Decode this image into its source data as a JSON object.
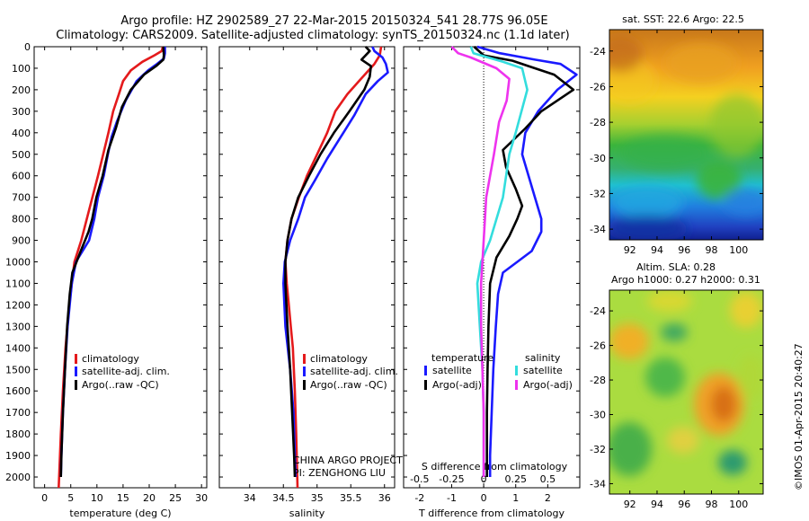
{
  "header": {
    "title_line1": "Argo profile: HZ 2902589_27 22-Mar-2015 20150324_541 28.77S 96.05E",
    "title_line2": "Climatology: CARS2009. Satellite-adjusted climatology: synTS_20150324.nc (1.1d later)"
  },
  "colors": {
    "climatology": "#e41a1c",
    "satellite": "#1a1aff",
    "argo": "#000000",
    "sat_salinity": "#33dddd",
    "argo_salinity": "#ee33ee"
  },
  "credit": {
    "line1": "CHINA ARGO PROJECT",
    "line2": "PI: ZENGHONG LIU"
  },
  "watermark": "©IMOS 01-Apr-2015 20:40:27",
  "depth_ticks": [
    0,
    100,
    200,
    300,
    400,
    500,
    600,
    700,
    800,
    900,
    1000,
    1100,
    1200,
    1300,
    1400,
    1500,
    1600,
    1700,
    1800,
    1900,
    2000
  ],
  "maps": {
    "sst_title": "sat. SST: 22.6  Argo: 22.5",
    "sla_title1": "Altim. SLA: 0.28",
    "sla_title2": "Argo h1000: 0.27 h2000: 0.31",
    "lat_ticks": [
      -24,
      -26,
      -28,
      -30,
      -32,
      -34
    ],
    "lon_ticks": [
      92,
      94,
      96,
      98,
      100
    ],
    "lon_range": [
      90.5,
      101.8
    ],
    "lat_range": [
      -34.6,
      -22.8
    ]
  },
  "chart_data": [
    {
      "type": "line",
      "id": "temperature",
      "xlabel": "temperature (deg C)",
      "ylabel": "",
      "xlim": [
        -2,
        31
      ],
      "ylim": [
        2050,
        0
      ],
      "x_ticks": [
        0,
        5,
        10,
        15,
        20,
        25,
        30
      ],
      "legend": [
        "climatology",
        "satellite-adj. clim.",
        "Argo(..raw -QC)"
      ],
      "legend_position": "lower-center",
      "series": [
        {
          "name": "climatology",
          "color": "#e41a1c",
          "points": [
            [
              22.6,
              0
            ],
            [
              22.4,
              20
            ],
            [
              21,
              40
            ],
            [
              18.7,
              70
            ],
            [
              16.5,
              110
            ],
            [
              15,
              160
            ],
            [
              14.2,
              220
            ],
            [
              13.1,
              300
            ],
            [
              12.2,
              400
            ],
            [
              11.2,
              500
            ],
            [
              10.2,
              600
            ],
            [
              8.6,
              750
            ],
            [
              7,
              900
            ],
            [
              5.7,
              1000
            ],
            [
              4.7,
              1200
            ],
            [
              4,
              1400
            ],
            [
              3.5,
              1600
            ],
            [
              3.1,
              1800
            ],
            [
              2.7,
              2050
            ]
          ]
        },
        {
          "name": "satellite-adj. clim.",
          "color": "#1a1aff",
          "points": [
            [
              23,
              0
            ],
            [
              23,
              30
            ],
            [
              22.8,
              55
            ],
            [
              21.5,
              80
            ],
            [
              19.8,
              110
            ],
            [
              17.6,
              160
            ],
            [
              15.5,
              250
            ],
            [
              13.8,
              350
            ],
            [
              12.8,
              420
            ],
            [
              12.1,
              500
            ],
            [
              11.3,
              600
            ],
            [
              10.2,
              700
            ],
            [
              9.5,
              800
            ],
            [
              8.5,
              900
            ],
            [
              6,
              1000
            ],
            [
              5.2,
              1100
            ],
            [
              4.4,
              1300
            ],
            [
              3.9,
              1500
            ],
            [
              3.5,
              1700
            ],
            [
              3.2,
              1900
            ],
            [
              3.1,
              2000
            ]
          ]
        },
        {
          "name": "Argo(..raw -QC)",
          "color": "#000000",
          "points": [
            [
              22.7,
              0
            ],
            [
              22.8,
              40
            ],
            [
              22.7,
              60
            ],
            [
              21.3,
              90
            ],
            [
              19,
              130
            ],
            [
              16.5,
              200
            ],
            [
              14.8,
              280
            ],
            [
              13.6,
              380
            ],
            [
              12.2,
              480
            ],
            [
              11.1,
              600
            ],
            [
              9.9,
              700
            ],
            [
              9.1,
              800
            ],
            [
              8.4,
              860
            ],
            [
              6.9,
              950
            ],
            [
              5.3,
              1050
            ],
            [
              4.8,
              1150
            ],
            [
              4.3,
              1300
            ],
            [
              3.9,
              1500
            ],
            [
              3.5,
              1700
            ],
            [
              3.2,
              1900
            ],
            [
              3.1,
              2000
            ]
          ]
        }
      ]
    },
    {
      "type": "line",
      "id": "salinity",
      "xlabel": "salinity",
      "ylabel": "",
      "xlim": [
        33.55,
        36.15
      ],
      "ylim": [
        2050,
        0
      ],
      "x_ticks": [
        34,
        34.5,
        35,
        35.5,
        36
      ],
      "legend": [
        "climatology",
        "satellite-adj. clim.",
        "Argo(..raw -QC)"
      ],
      "legend_position": "lower-center",
      "series": [
        {
          "name": "climatology",
          "color": "#e41a1c",
          "points": [
            [
              35.95,
              0
            ],
            [
              35.93,
              40
            ],
            [
              35.85,
              80
            ],
            [
              35.65,
              150
            ],
            [
              35.45,
              220
            ],
            [
              35.27,
              300
            ],
            [
              35.15,
              400
            ],
            [
              35,
              500
            ],
            [
              34.85,
              600
            ],
            [
              34.73,
              700
            ],
            [
              34.62,
              800
            ],
            [
              34.56,
              900
            ],
            [
              34.53,
              1000
            ],
            [
              34.55,
              1100
            ],
            [
              34.58,
              1200
            ],
            [
              34.61,
              1300
            ],
            [
              34.64,
              1400
            ],
            [
              34.67,
              1600
            ],
            [
              34.69,
              1800
            ],
            [
              34.71,
              2050
            ]
          ]
        },
        {
          "name": "satellite-adj. clim.",
          "color": "#1a1aff",
          "points": [
            [
              35.82,
              0
            ],
            [
              35.85,
              20
            ],
            [
              35.97,
              50
            ],
            [
              36.02,
              80
            ],
            [
              36.05,
              120
            ],
            [
              35.9,
              160
            ],
            [
              35.72,
              220
            ],
            [
              35.55,
              320
            ],
            [
              35.35,
              420
            ],
            [
              35.15,
              520
            ],
            [
              34.97,
              620
            ],
            [
              34.82,
              700
            ],
            [
              34.72,
              800
            ],
            [
              34.6,
              900
            ],
            [
              34.52,
              1000
            ],
            [
              34.5,
              1100
            ],
            [
              34.53,
              1300
            ],
            [
              34.6,
              1500
            ],
            [
              34.65,
              1700
            ],
            [
              34.67,
              1900
            ],
            [
              34.68,
              2000
            ]
          ]
        },
        {
          "name": "Argo(..raw -QC)",
          "color": "#000000",
          "points": [
            [
              35.72,
              0
            ],
            [
              35.78,
              20
            ],
            [
              35.66,
              60
            ],
            [
              35.8,
              90
            ],
            [
              35.78,
              140
            ],
            [
              35.7,
              200
            ],
            [
              35.48,
              300
            ],
            [
              35.25,
              400
            ],
            [
              35.05,
              500
            ],
            [
              34.88,
              600
            ],
            [
              34.72,
              700
            ],
            [
              34.62,
              800
            ],
            [
              34.56,
              900
            ],
            [
              34.53,
              1000
            ],
            [
              34.53,
              1100
            ],
            [
              34.56,
              1300
            ],
            [
              34.6,
              1500
            ],
            [
              34.63,
              1700
            ],
            [
              34.66,
              1900
            ],
            [
              34.67,
              2000
            ]
          ]
        }
      ]
    },
    {
      "type": "line",
      "id": "differences",
      "xlabel": "T difference from climatology",
      "xlabel2": "S difference from climatology",
      "ylabel": "",
      "xlim": [
        -2.5,
        3
      ],
      "xlim_s": [
        -0.625,
        0.75
      ],
      "ylim": [
        2050,
        0
      ],
      "x_ticks": [
        -2,
        -1,
        0,
        1,
        2
      ],
      "x_ticks_s": [
        "-0.5",
        "-0.25",
        "0",
        "0.25",
        "0.5"
      ],
      "x_ticks_s_values": [
        -0.5,
        -0.25,
        0,
        0.25,
        0.5
      ],
      "legend_titles": [
        "temperature",
        "salinity"
      ],
      "legend": [
        "satellite",
        "Argo(-adj)",
        "satellite",
        "Argo(-adj)"
      ],
      "legend_position": "lower-center",
      "series": [
        {
          "name": "satellite",
          "group": "temperature",
          "color": "#1a1aff",
          "points": [
            [
              -0.2,
              0
            ],
            [
              0.5,
              30
            ],
            [
              1.6,
              60
            ],
            [
              2.4,
              80
            ],
            [
              2.9,
              130
            ],
            [
              2.3,
              200
            ],
            [
              1.7,
              300
            ],
            [
              1.3,
              400
            ],
            [
              1.2,
              500
            ],
            [
              1.4,
              600
            ],
            [
              1.6,
              700
            ],
            [
              1.8,
              800
            ],
            [
              1.8,
              860
            ],
            [
              1.5,
              950
            ],
            [
              0.6,
              1050
            ],
            [
              0.45,
              1150
            ],
            [
              0.38,
              1300
            ],
            [
              0.3,
              1500
            ],
            [
              0.25,
              1700
            ],
            [
              0.2,
              1900
            ],
            [
              0.2,
              2000
            ]
          ]
        },
        {
          "name": "Argo(-adj)",
          "group": "temperature",
          "color": "#000000",
          "points": [
            [
              -0.3,
              0
            ],
            [
              0,
              40
            ],
            [
              0.9,
              65
            ],
            [
              1.4,
              90
            ],
            [
              2.2,
              130
            ],
            [
              2.8,
              200
            ],
            [
              1.8,
              300
            ],
            [
              1.3,
              380
            ],
            [
              0.6,
              480
            ],
            [
              0.7,
              560
            ],
            [
              1,
              660
            ],
            [
              1.2,
              740
            ],
            [
              1.05,
              800
            ],
            [
              0.8,
              880
            ],
            [
              0.4,
              980
            ],
            [
              0.2,
              1100
            ],
            [
              0.15,
              1300
            ],
            [
              0.12,
              1500
            ],
            [
              0.1,
              1700
            ],
            [
              0.1,
              1900
            ],
            [
              0.1,
              2000
            ]
          ]
        },
        {
          "name": "satellite",
          "group": "salinity",
          "color": "#33dddd",
          "points": [
            [
              -0.1,
              0
            ],
            [
              -0.08,
              30
            ],
            [
              0.15,
              70
            ],
            [
              0.3,
              100
            ],
            [
              0.34,
              200
            ],
            [
              0.25,
              400
            ],
            [
              0.2,
              500
            ],
            [
              0.15,
              700
            ],
            [
              0.05,
              900
            ],
            [
              -0.02,
              1000
            ],
            [
              -0.05,
              1100
            ],
            [
              -0.03,
              1300
            ],
            [
              -0.01,
              1500
            ],
            [
              0,
              1700
            ],
            [
              0,
              1900
            ],
            [
              0,
              2000
            ]
          ]
        },
        {
          "name": "Argo(-adj)",
          "group": "salinity",
          "color": "#ee33ee",
          "points": [
            [
              -0.25,
              0
            ],
            [
              -0.2,
              30
            ],
            [
              -0.1,
              50
            ],
            [
              0.1,
              100
            ],
            [
              0.2,
              150
            ],
            [
              0.18,
              250
            ],
            [
              0.12,
              350
            ],
            [
              0.08,
              500
            ],
            [
              0.02,
              700
            ],
            [
              0,
              900
            ],
            [
              -0.01,
              1000
            ],
            [
              -0.02,
              1100
            ],
            [
              -0.02,
              1300
            ],
            [
              -0.01,
              1500
            ],
            [
              0,
              1700
            ],
            [
              0,
              1900
            ],
            [
              0,
              2000
            ]
          ]
        }
      ]
    }
  ]
}
